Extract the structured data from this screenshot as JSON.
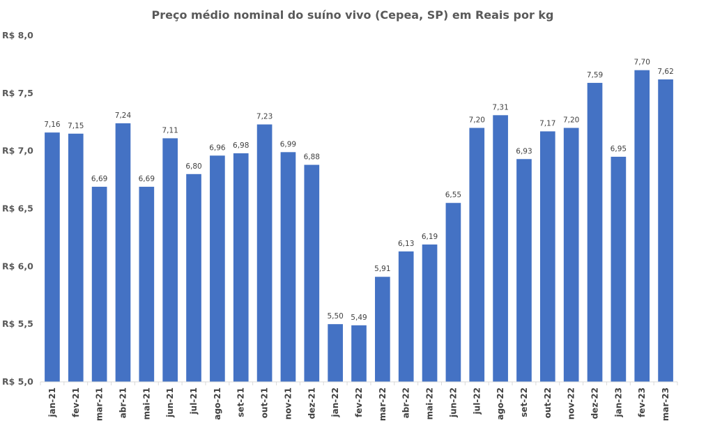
{
  "chart_data": {
    "type": "bar",
    "title": "Preço médio nominal do suíno vivo (Cepea, SP) em Reais por kg",
    "xlabel": "",
    "ylabel": "",
    "ylim": [
      5.0,
      8.0
    ],
    "yticks": [
      5.0,
      5.5,
      6.0,
      6.5,
      7.0,
      7.5,
      8.0
    ],
    "ytick_labels": [
      "R$ 5,0",
      "R$ 5,5",
      "R$ 6,0",
      "R$ 6,5",
      "R$ 7,0",
      "R$ 7,5",
      "R$ 8,0"
    ],
    "bar_color": "#4472C4",
    "categories": [
      "jan-21",
      "fev-21",
      "mar-21",
      "abr-21",
      "mai-21",
      "jun-21",
      "jul-21",
      "ago-21",
      "set-21",
      "out-21",
      "nov-21",
      "dez-21",
      "jan-22",
      "fev-22",
      "mar-22",
      "abr-22",
      "mai-22",
      "jun-22",
      "jul-22",
      "ago-22",
      "set-22",
      "out-22",
      "nov-22",
      "dez-22",
      "jan-23",
      "fev-23",
      "mar-23"
    ],
    "values": [
      7.16,
      7.15,
      6.69,
      7.24,
      6.69,
      7.11,
      6.8,
      6.96,
      6.98,
      7.23,
      6.99,
      6.88,
      5.5,
      5.49,
      5.91,
      6.13,
      6.19,
      6.55,
      7.2,
      7.31,
      6.93,
      7.17,
      7.2,
      7.59,
      6.95,
      7.7,
      7.62
    ],
    "data_labels": [
      "7,16",
      "7,15",
      "6,69",
      "7,24",
      "6,69",
      "7,11",
      "6,80",
      "6,96",
      "6,98",
      "7,23",
      "6,99",
      "6,88",
      "5,50",
      "5,49",
      "5,91",
      "6,13",
      "6,19",
      "6,55",
      "7,20",
      "7,31",
      "6,93",
      "7,17",
      "7,20",
      "7,59",
      "6,95",
      "7,70",
      "7,62"
    ]
  }
}
